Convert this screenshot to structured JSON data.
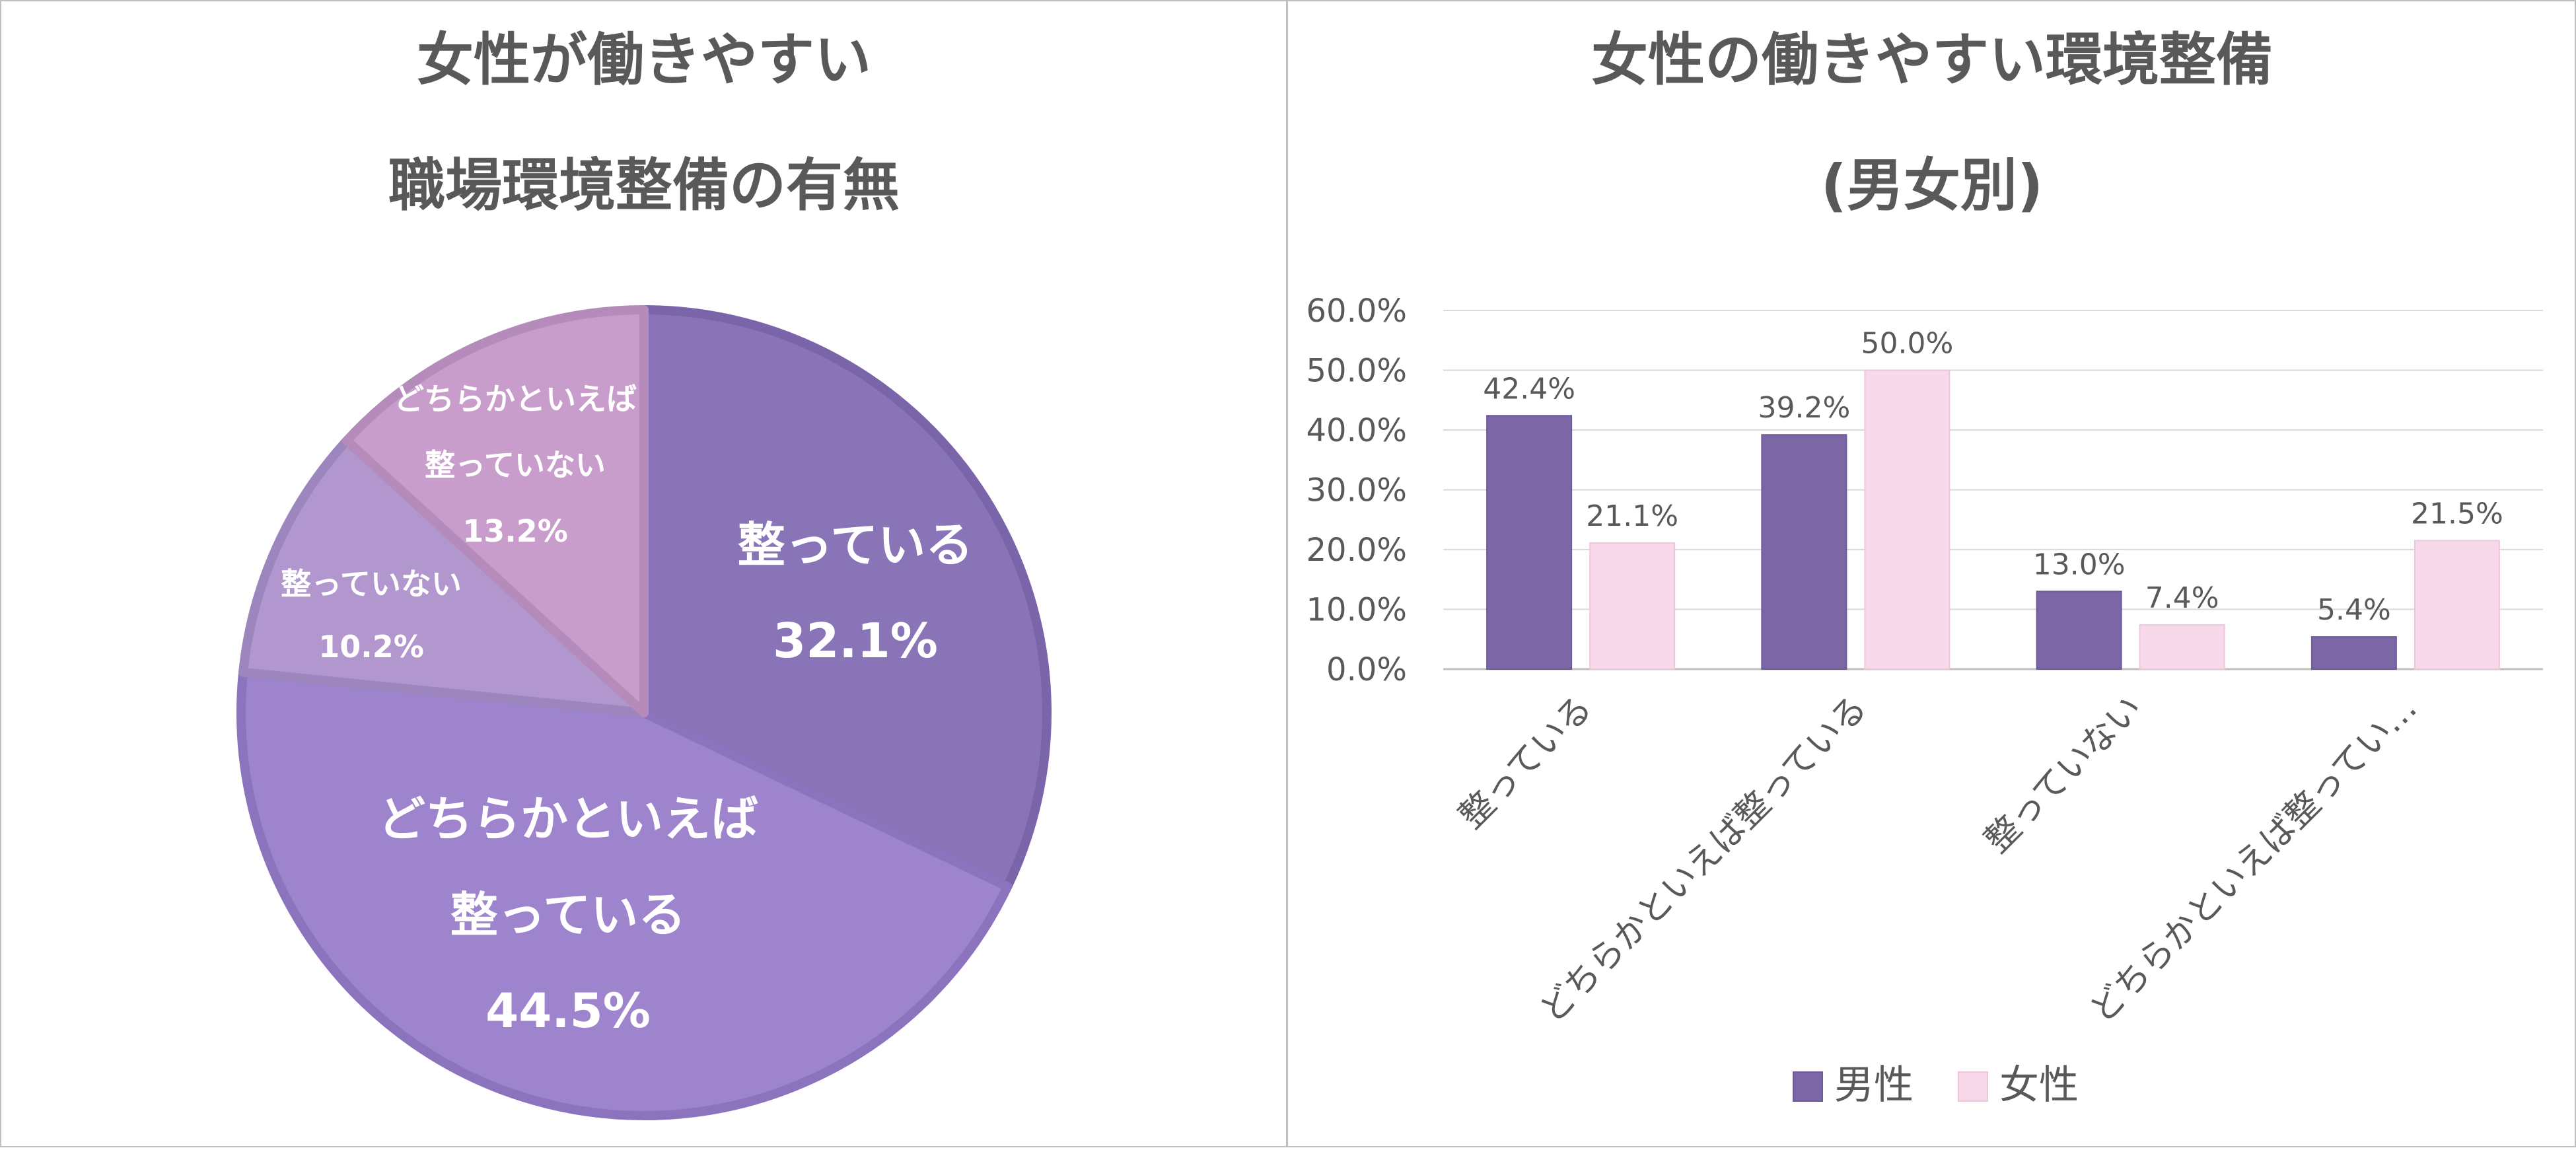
{
  "colors": {
    "text": "#595959",
    "title": "#595959",
    "grid": "#d9d9d9",
    "border": "#bfbfbf",
    "male": "#7b66a6",
    "female": "#f8d9ea",
    "pie": [
      "#8874b6",
      "#9d84cd",
      "#b197cd",
      "#c89dcb"
    ],
    "pie_stroke": [
      "#7a64aa",
      "#8b73bd",
      "#9d86bd",
      "#b48bbb"
    ]
  },
  "chart_data": [
    {
      "type": "pie",
      "title": [
        "女性が働きやすい",
        "職場環境整備の有無"
      ],
      "slices": [
        {
          "label": [
            "整っている"
          ],
          "value": 32.1,
          "value_label": "32.1%"
        },
        {
          "label": [
            "どちらかといえば",
            "整っている"
          ],
          "value": 44.5,
          "value_label": "44.5%"
        },
        {
          "label": [
            "整っていない"
          ],
          "value": 10.2,
          "value_label": "10.2%"
        },
        {
          "label": [
            "どちらかといえば",
            "整っていない"
          ],
          "value": 13.2,
          "value_label": "13.2%"
        }
      ]
    },
    {
      "type": "bar",
      "title": [
        "女性の働きやすい環境整備",
        "(男女別)"
      ],
      "categories": [
        "整っている",
        "どちらかといえば整っている",
        "整っていない",
        "どちらかといえば整ってい…"
      ],
      "series": [
        {
          "name": "男性",
          "values": [
            42.4,
            39.2,
            13.0,
            5.4
          ],
          "value_labels": [
            "42.4%",
            "39.2%",
            "13.0%",
            "5.4%"
          ]
        },
        {
          "name": "女性",
          "values": [
            21.1,
            50.0,
            7.4,
            21.5
          ],
          "value_labels": [
            "21.1%",
            "50.0%",
            "7.4%",
            "21.5%"
          ]
        }
      ],
      "ylim": [
        0,
        60
      ],
      "yticks": [
        0,
        10,
        20,
        30,
        40,
        50,
        60
      ],
      "ytick_labels": [
        "0.0%",
        "10.0%",
        "20.0%",
        "30.0%",
        "40.0%",
        "50.0%",
        "60.0%"
      ],
      "legend": "bottom",
      "grid": true
    }
  ]
}
